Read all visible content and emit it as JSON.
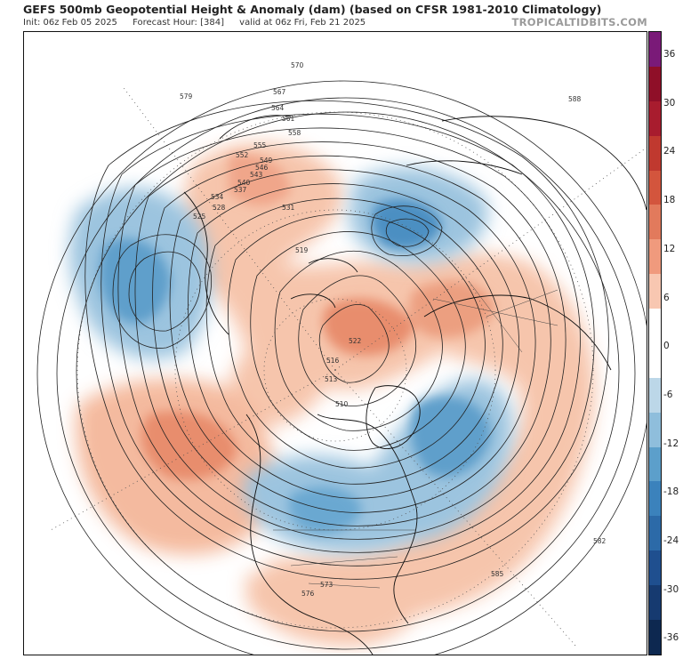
{
  "header": {
    "title": "GEFS 500mb Geopotential Height & Anomaly (dam) (based on CFSR 1981-2010 Climatology)",
    "init": "Init: 06z Feb 05 2025",
    "forecast_hour": "Forecast Hour: [384]",
    "valid": "valid at 06z Fri, Feb 21 2025",
    "brand": "TROPICALTIDBITS.COM"
  },
  "colorbar": {
    "ticks": [
      "36",
      "30",
      "24",
      "18",
      "12",
      "6",
      "0",
      "-6",
      "-12",
      "-18",
      "-24",
      "-30",
      "-36"
    ],
    "bands": [
      "#7a1a78",
      "#8f0f28",
      "#a81c2e",
      "#c0392f",
      "#d3553d",
      "#e27a5c",
      "#f09a7d",
      "#f8c7b1",
      "#ffffff",
      "#ffffff",
      "#bcd7e8",
      "#8fbedc",
      "#5c9fcb",
      "#3b82bc",
      "#2c6aa8",
      "#1f4f8f",
      "#163a70",
      "#0d2850"
    ]
  },
  "map": {
    "contour_labels": [
      "582",
      "579",
      "576",
      "573",
      "570",
      "567",
      "564",
      "561",
      "558",
      "555",
      "552",
      "549",
      "546",
      "543",
      "540",
      "537",
      "534",
      "531",
      "528",
      "525",
      "522",
      "519",
      "516",
      "513",
      "510",
      "585",
      "588"
    ]
  }
}
